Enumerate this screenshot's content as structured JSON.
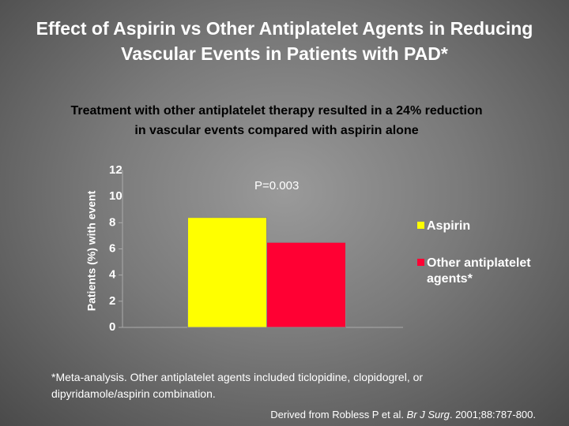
{
  "chart_data": {
    "type": "bar",
    "title": "Effect of Aspirin vs Other Antiplatelet Agents in Reducing Vascular Events in Patients with PAD*",
    "subtitle": "Treatment with other antiplatelet therapy resulted in a 24% reduction in vascular events compared with aspirin alone",
    "y_label": "Patients (%) with event",
    "annotation": "P=0.003",
    "categories": [
      null
    ],
    "series": [
      {
        "name": "Aspirin",
        "color": "#ffff00",
        "values": [
          8.4
        ]
      },
      {
        "name": "Other antiplatelet agents*",
        "color": "#ff0033",
        "values": [
          6.5
        ]
      }
    ],
    "ylim": [
      0,
      12
    ],
    "yticks": [
      0,
      2,
      4,
      6,
      8,
      10,
      12
    ],
    "grid": false,
    "legend": "right",
    "footnote": "*Meta-analysis. Other antiplatelet agents included ticlopidine, clopidogrel, or dipyridamole/aspirin combination.",
    "source": {
      "text": "Derived from Robless P et al. ",
      "journal": "Br J Surg",
      "citation": ". 2001;88:787-800."
    }
  }
}
